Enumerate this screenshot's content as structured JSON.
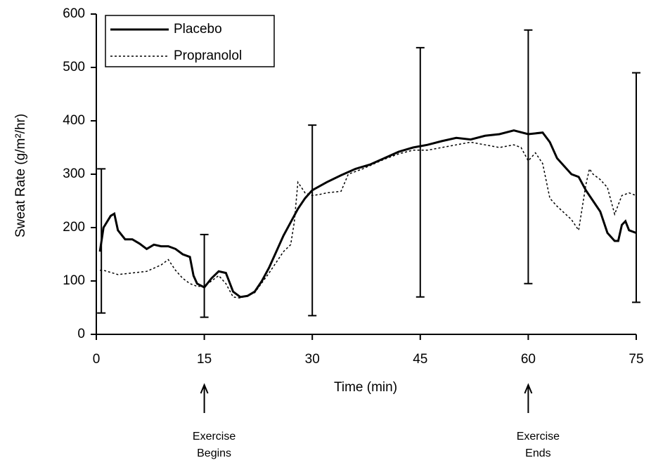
{
  "chart_data": {
    "type": "line",
    "xlabel": "Time (min)",
    "ylabel": "Sweat Rate (g/m²/hr)",
    "xlim": [
      0,
      75
    ],
    "xticks": [
      0,
      15,
      30,
      45,
      60,
      75
    ],
    "ylim": [
      0,
      600
    ],
    "yticks": [
      0,
      100,
      200,
      300,
      400,
      500,
      600
    ],
    "legend": "upper left",
    "series": [
      {
        "name": "Placebo",
        "color": "#000000",
        "style": "solid",
        "x": [
          0.5,
          1,
          2,
          2.5,
          3,
          4,
          5,
          6,
          7,
          8,
          9,
          10,
          11,
          12,
          13,
          13.5,
          14,
          15,
          16,
          17,
          18,
          19,
          20,
          21,
          22,
          23,
          24,
          25,
          26,
          27,
          28,
          29,
          30,
          32,
          34,
          36,
          38,
          40,
          42,
          44,
          46,
          48,
          50,
          52,
          54,
          56,
          58,
          60,
          62,
          63,
          64,
          65,
          66,
          67,
          68,
          69,
          70,
          71,
          72,
          72.5,
          73,
          73.5,
          74,
          75
        ],
        "values": [
          155,
          200,
          222,
          226,
          195,
          178,
          178,
          170,
          160,
          168,
          165,
          165,
          160,
          150,
          145,
          110,
          95,
          88,
          105,
          118,
          115,
          80,
          70,
          72,
          80,
          100,
          125,
          155,
          185,
          210,
          235,
          255,
          270,
          285,
          298,
          310,
          318,
          330,
          342,
          350,
          355,
          362,
          368,
          365,
          372,
          375,
          382,
          375,
          378,
          360,
          330,
          315,
          300,
          295,
          270,
          250,
          230,
          190,
          175,
          175,
          205,
          212,
          195,
          190
        ]
      },
      {
        "name": "Propranolol",
        "color": "#000000",
        "style": "dotted",
        "x": [
          0.5,
          1,
          3,
          5,
          7,
          9,
          10,
          11,
          12,
          13,
          14,
          15,
          16,
          17,
          18,
          19,
          20,
          22,
          24,
          26,
          27,
          27.5,
          28,
          29,
          30,
          31,
          32,
          34,
          35,
          37,
          40,
          42,
          44,
          46,
          48,
          50,
          52,
          54,
          56,
          58,
          59,
          60,
          61,
          62,
          63,
          64,
          66,
          67,
          68,
          68.5,
          69,
          70,
          71,
          72,
          73,
          74,
          75
        ],
        "values": [
          120,
          120,
          112,
          115,
          118,
          130,
          140,
          120,
          105,
          95,
          90,
          90,
          100,
          110,
          95,
          70,
          68,
          78,
          115,
          155,
          168,
          210,
          285,
          265,
          260,
          262,
          265,
          268,
          300,
          310,
          328,
          338,
          345,
          345,
          350,
          355,
          360,
          355,
          350,
          355,
          350,
          325,
          340,
          320,
          255,
          240,
          215,
          195,
          280,
          310,
          300,
          290,
          275,
          225,
          260,
          265,
          260
        ]
      }
    ],
    "error_bars": [
      {
        "x": 0.7,
        "low": 40,
        "high": 310
      },
      {
        "x": 15,
        "low": 32,
        "high": 187
      },
      {
        "x": 30,
        "low": 35,
        "high": 392
      },
      {
        "x": 45,
        "low": 70,
        "high": 537
      },
      {
        "x": 60,
        "low": 95,
        "high": 570
      },
      {
        "x": 75,
        "low": 60,
        "high": 490
      }
    ],
    "annotations": [
      {
        "x": 15,
        "lines": [
          "Exercise",
          "Begins"
        ]
      },
      {
        "x": 60,
        "lines": [
          "Exercise",
          "Ends"
        ]
      }
    ]
  }
}
